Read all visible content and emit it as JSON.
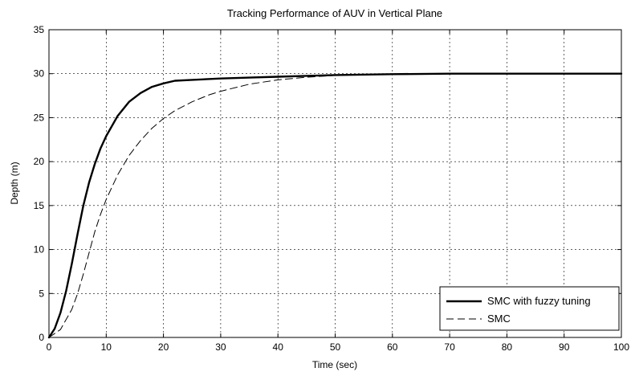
{
  "chart_data": {
    "type": "line",
    "title": "Tracking Performance of AUV in Vertical Plane",
    "xlabel": "Time (sec)",
    "ylabel": "Depth (m)",
    "xlim": [
      0,
      100
    ],
    "ylim": [
      0,
      35
    ],
    "xticks": [
      0,
      10,
      20,
      30,
      40,
      50,
      60,
      70,
      80,
      90,
      100
    ],
    "yticks": [
      0,
      5,
      10,
      15,
      20,
      25,
      30,
      35
    ],
    "grid": true,
    "legend_position": "bottom-right",
    "series": [
      {
        "name": "SMC with fuzzy tuning",
        "line_style": "solid",
        "color": "#000000",
        "x": [
          0,
          1,
          2,
          3,
          4,
          5,
          6,
          7,
          8,
          9,
          10,
          12,
          14,
          16,
          18,
          20,
          22,
          25,
          30,
          35,
          40,
          45,
          50,
          60,
          70,
          80,
          90,
          100
        ],
        "y": [
          0,
          1.0,
          2.8,
          5.3,
          8.4,
          11.8,
          15.0,
          17.6,
          19.7,
          21.5,
          22.9,
          25.2,
          26.8,
          27.8,
          28.5,
          28.9,
          29.2,
          29.3,
          29.45,
          29.55,
          29.65,
          29.75,
          29.85,
          29.95,
          30.0,
          30.0,
          30.0,
          30.0
        ]
      },
      {
        "name": "SMC",
        "line_style": "dashed",
        "color": "#000000",
        "x": [
          0,
          2,
          4,
          5,
          6,
          7,
          8,
          9,
          10,
          12,
          14,
          16,
          18,
          20,
          22,
          25,
          28,
          30,
          35,
          40,
          45,
          50,
          55,
          60,
          70,
          80,
          90,
          100
        ],
        "y": [
          0,
          0.9,
          3.2,
          5.0,
          7.2,
          9.6,
          12.0,
          14.0,
          15.7,
          18.5,
          20.7,
          22.4,
          23.8,
          24.9,
          25.8,
          26.8,
          27.6,
          28.0,
          28.8,
          29.3,
          29.6,
          29.8,
          29.9,
          29.95,
          30.0,
          30.0,
          30.0,
          30.0
        ]
      }
    ]
  }
}
